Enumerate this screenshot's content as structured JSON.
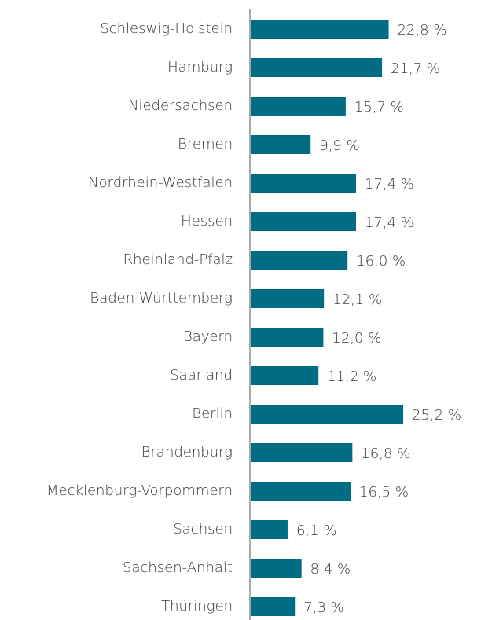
{
  "chart_data": {
    "type": "bar",
    "orientation": "horizontal",
    "color": "#006d85",
    "categories": [
      "Schleswig-Holstein",
      "Hamburg",
      "Niedersachsen",
      "Bremen",
      "Nordrhein-Westfalen",
      "Hessen",
      "Rheinland-Pfalz",
      "Baden-Württemberg",
      "Bayern",
      "Saarland",
      "Berlin",
      "Brandenburg",
      "Mecklenburg-Vorpommern",
      "Sachsen",
      "Sachsen-Anhalt",
      "Thüringen"
    ],
    "values": [
      22.8,
      21.7,
      15.7,
      9.9,
      17.4,
      17.4,
      16.0,
      12.1,
      12.0,
      11.2,
      25.2,
      16.8,
      16.5,
      6.1,
      8.4,
      7.3
    ],
    "value_labels": [
      "22,8 %",
      "21,7 %",
      "15,7 %",
      "9,9 %",
      "17,4 %",
      "17,4 %",
      "16,0 %",
      "12,1 %",
      "12,0 %",
      "11,2 %",
      "25,2 %",
      "16,8 %",
      "16,5 %",
      "6,1 %",
      "8,4 %",
      "7,3 %"
    ]
  }
}
